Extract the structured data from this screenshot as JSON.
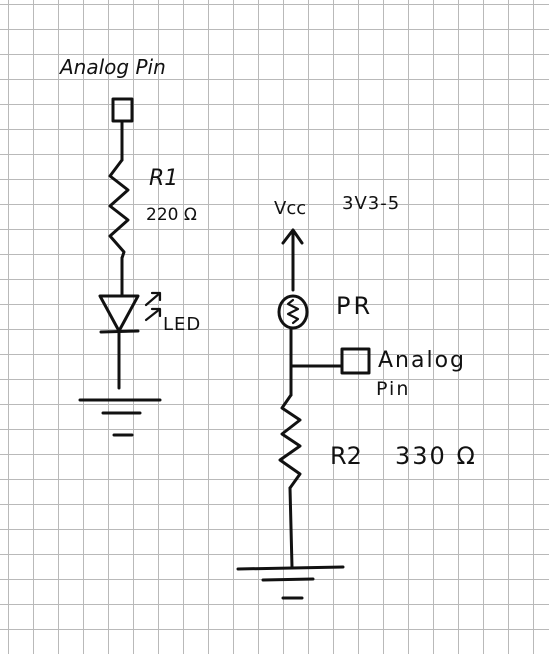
{
  "left_circuit": {
    "analog_pin_label": "Analog Pin",
    "resistor_name": "R1",
    "resistor_value": "220 Ω",
    "led_label": "LED"
  },
  "right_circuit": {
    "supply_label": "Vcc",
    "supply_range": "3V3-5",
    "photoresistor_label": "PR",
    "analog_pin_label_line1": "Analog",
    "analog_pin_label_line2": "Pin",
    "resistor_name": "R2",
    "resistor_value": "330 Ω"
  }
}
